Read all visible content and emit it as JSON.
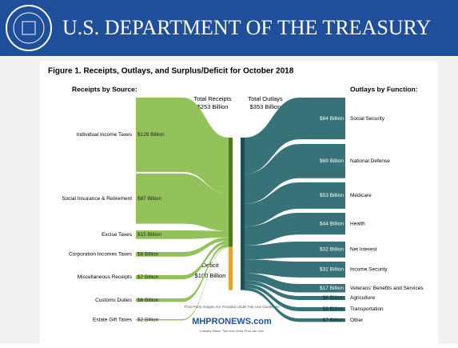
{
  "header": {
    "title": "U.S. DEPARTMENT OF THE TREASURY"
  },
  "chart_data": {
    "type": "sankey",
    "title": "Figure 1. Receipts, Outlays, and Surplus/Deficit for October 2018",
    "left_heading": "Receipts by Source:",
    "right_heading": "Outlays by Function:",
    "receipts": {
      "label": "Total Receipts",
      "value": 253,
      "value_label": "$253 Billion",
      "color": "#8dbf52",
      "categories": [
        "Individual Income Taxes",
        "Social Insurance & Retirement",
        "Excise Taxes",
        "Corporation Incomes Taxes",
        "Miscellaneous Receipts",
        "Customs Duties",
        "Estate Gift Taxes"
      ],
      "values": [
        129,
        87,
        15,
        8,
        7,
        6,
        2
      ],
      "value_labels": [
        "$129 Billion",
        "$87 Billion",
        "$15 Billion",
        "$8 Billion",
        "$7 Billion",
        "$6 Billion",
        "$2 Billion"
      ]
    },
    "outlays": {
      "label": "Total Outlays",
      "value": 353,
      "value_label": "$353 Billion",
      "color": "#2f6d73",
      "categories": [
        "Social Security",
        "National Defense",
        "Medicare",
        "Health",
        "Net Interest",
        "Income Security",
        "Veterans' Benefits and Services",
        "Agriculture",
        "Transportation",
        "Other"
      ],
      "values": [
        84,
        69,
        53,
        44,
        32,
        32,
        17,
        8,
        8,
        7
      ],
      "value_labels": [
        "$84 Billion",
        "$69 Billion",
        "$53 Billion",
        "$44 Billion",
        "$32 Billion",
        "$32 Billion",
        "$17 Billion",
        "$8 Billion",
        "$8 Billion",
        "$7 Billion"
      ]
    },
    "deficit": {
      "label": "Deficit",
      "value": 100,
      "value_label": "$100 Billion",
      "color": "#e3a52b"
    }
  },
  "watermark": {
    "lines": [
      "Third Party Images Are Provided Under Fair Use Guidelines",
      "MHPRONEWS.com",
      "Industry News, Tips and Views Pros can Use"
    ]
  }
}
